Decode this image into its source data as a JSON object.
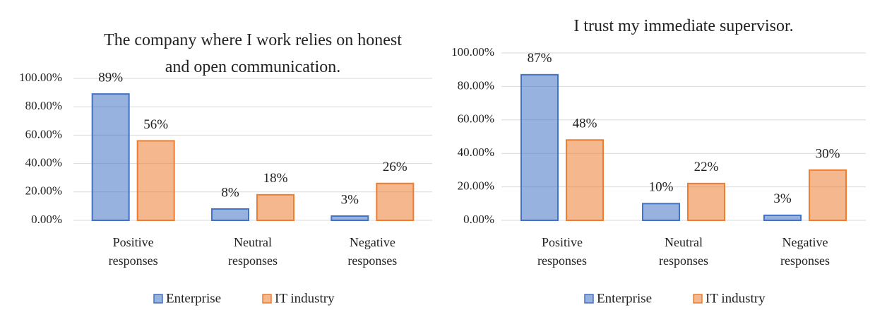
{
  "chart_data": [
    {
      "type": "bar",
      "title": "The company where I work relies on honest and open communication.",
      "categories": [
        "Positive responses",
        "Neutral responses",
        "Negative responses"
      ],
      "series": [
        {
          "name": "Enterprise",
          "color": "#4472C4",
          "values": [
            89,
            8,
            3
          ],
          "value_labels": [
            "89%",
            "8%",
            "3%"
          ]
        },
        {
          "name": "IT industry",
          "color": "#ED7D31",
          "values": [
            56,
            18,
            26
          ],
          "value_labels": [
            "56%",
            "18%",
            "26%"
          ]
        }
      ],
      "ylim": [
        0,
        100
      ],
      "yticks": [
        {
          "value": 0,
          "label": "0.00%"
        },
        {
          "value": 20,
          "label": "20.00%"
        },
        {
          "value": 40,
          "label": "40.00%"
        },
        {
          "value": 60,
          "label": "60.00%"
        },
        {
          "value": 80,
          "label": "80.00%"
        },
        {
          "value": 100,
          "label": "100.00%"
        }
      ],
      "grid": true,
      "legend": "bottom"
    },
    {
      "type": "bar",
      "title": "I trust my immediate supervisor.",
      "categories": [
        "Positive responses",
        "Neutral responses",
        "Negative responses"
      ],
      "series": [
        {
          "name": "Enterprise",
          "color": "#4472C4",
          "values": [
            87,
            10,
            3
          ],
          "value_labels": [
            "87%",
            "10%",
            "3%"
          ]
        },
        {
          "name": "IT industry",
          "color": "#ED7D31",
          "values": [
            48,
            22,
            30
          ],
          "value_labels": [
            "48%",
            "22%",
            "30%"
          ]
        }
      ],
      "ylim": [
        0,
        100
      ],
      "yticks": [
        {
          "value": 0,
          "label": "0.00%"
        },
        {
          "value": 20,
          "label": "20.00%"
        },
        {
          "value": 40,
          "label": "40.00%"
        },
        {
          "value": 60,
          "label": "60.00%"
        },
        {
          "value": 80,
          "label": "80.00%"
        },
        {
          "value": 100,
          "label": "100.00%"
        }
      ],
      "grid": true,
      "legend": "bottom"
    }
  ]
}
